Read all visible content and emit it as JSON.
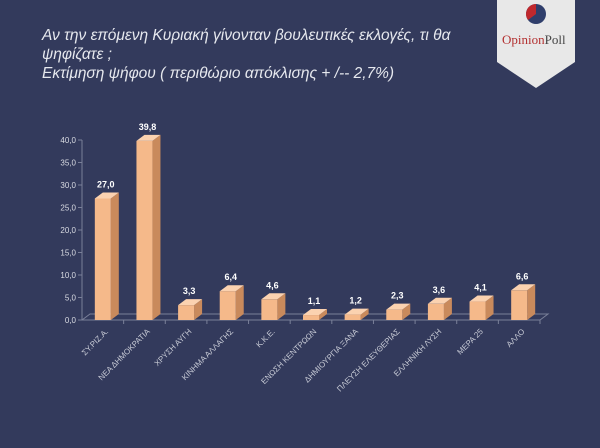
{
  "title": {
    "line1": "Αν την επόμενη Κυριακή γίνονταν βουλευτικές εκλογές, τι θα ψηφίζατε ;",
    "line2": "Εκτίμηση ψήφου ( περιθώριο απόκλισης + /-- 2,7%)"
  },
  "logo": {
    "text_a": "Opinion",
    "text_b": "Poll"
  },
  "colors": {
    "background": "#333a5c",
    "bar_front": "#f5b98a",
    "bar_side": "#c98a5c",
    "bar_top": "#fbd2b0"
  },
  "chart_data": {
    "type": "bar",
    "title": "",
    "categories": [
      "ΣΥ.ΡΙΖ.Α.",
      "ΝΕΑ ΔΗΜΟΚΡΑΤΙΑ",
      "ΧΡΥΣΗ ΑΥΓΗ",
      "ΚΙΝΗΜΑ ΑΛΛΑΓΗΣ",
      "Κ.Κ.Ε.",
      "ΕΝΩΣΗ ΚΕΝΤΡΩΩΝ",
      "ΔΗΜΙΟΥΡΓΙΑ ΞΑΝΑ",
      "ΠΛΕΥΣΗ ΕΛΕΥΘΕΡΙΑΣ",
      "ΕΛΛΗΝΙΚΗ ΛΥΣΗ",
      "ΜΕΡΑ 25",
      "ΑΛΛΟ"
    ],
    "values": [
      27.0,
      39.8,
      3.3,
      6.4,
      4.6,
      1.1,
      1.2,
      2.3,
      3.6,
      4.1,
      6.6
    ],
    "data_labels": [
      "27,0",
      "39,8",
      "3,3",
      "6,4",
      "4,6",
      "1,1",
      "1,2",
      "2,3",
      "3,6",
      "4,1",
      "6,6"
    ],
    "yticks": [
      "0,0",
      "5,0",
      "10,0",
      "15,0",
      "20,0",
      "25,0",
      "30,0",
      "35,0",
      "40,0"
    ],
    "ylim": [
      0,
      40
    ],
    "grid": false,
    "legend": "none"
  }
}
